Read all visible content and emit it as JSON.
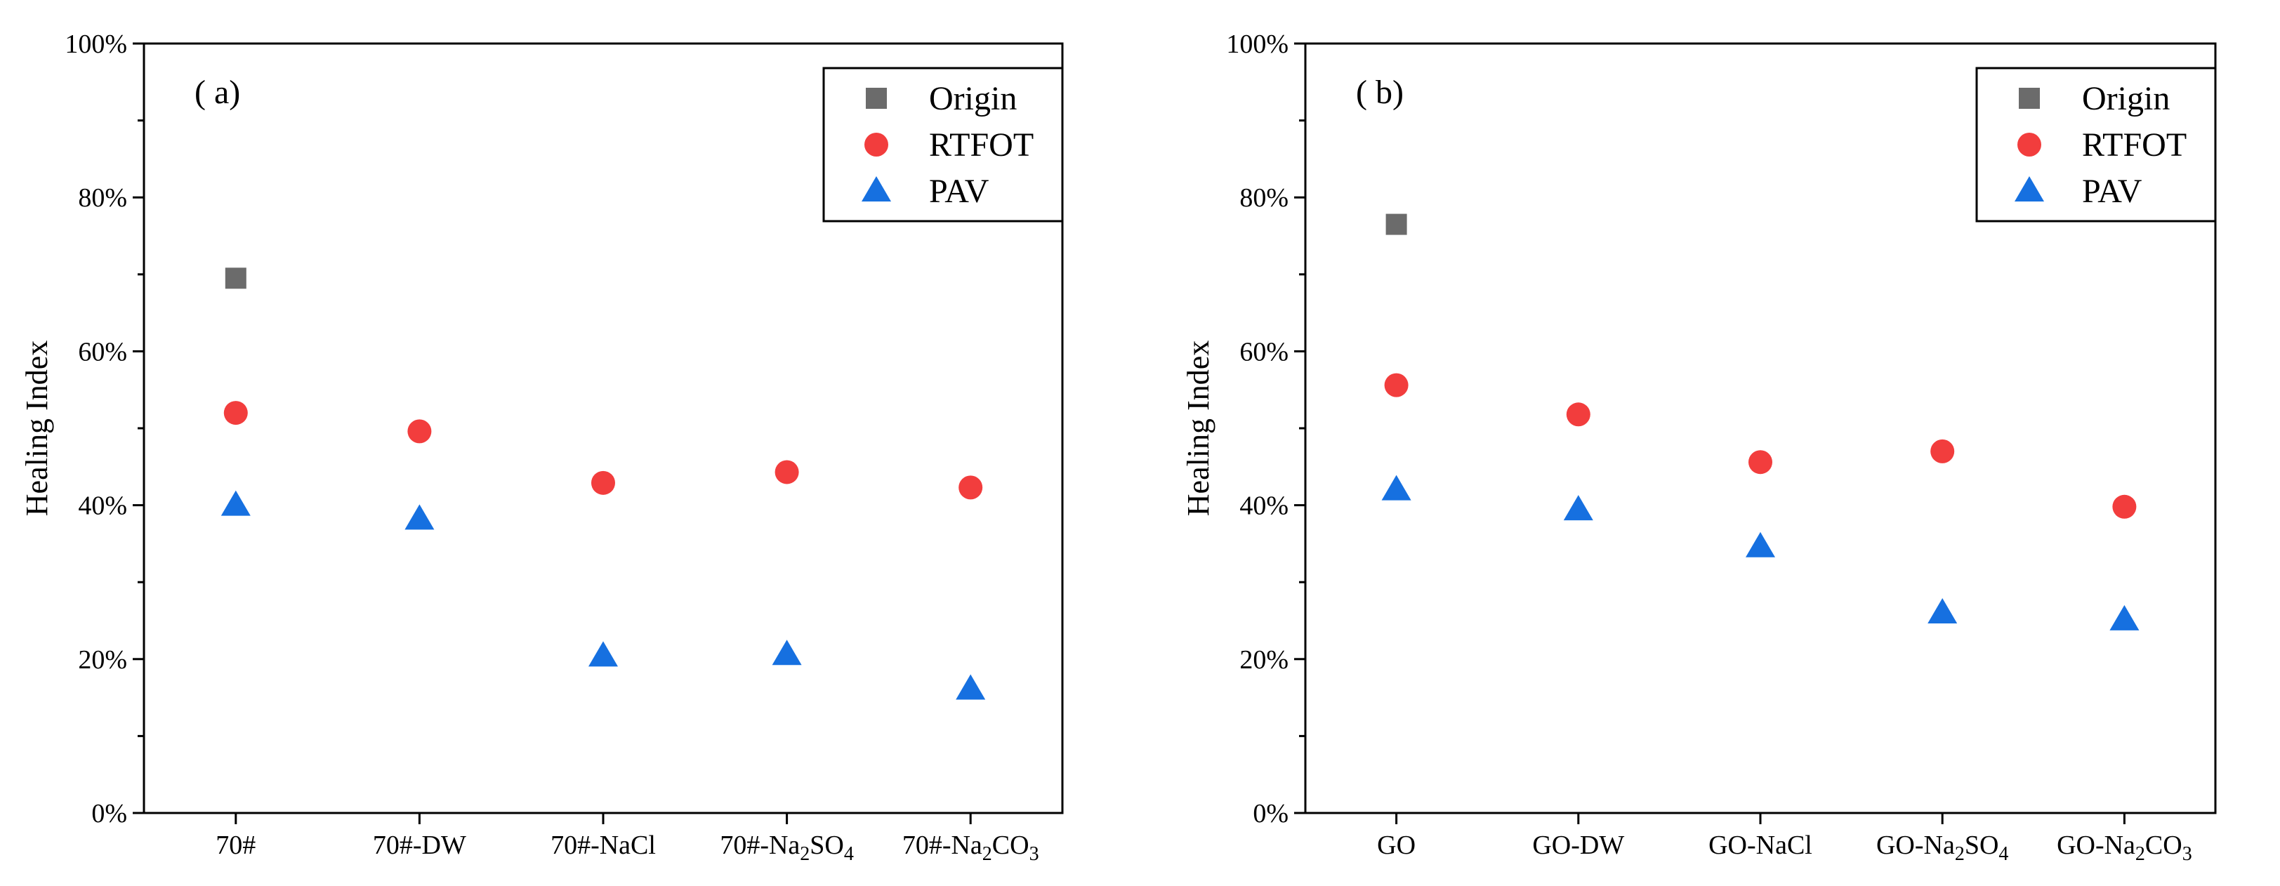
{
  "colors": {
    "origin": "#6b6b6b",
    "rtfot": "#f23d3d",
    "pav": "#1670e0",
    "axis": "#000000",
    "background": "#ffffff"
  },
  "legend": {
    "placement": "top-right",
    "entries": [
      {
        "name": "Origin",
        "marker": "square",
        "color_key": "origin"
      },
      {
        "name": "RTFOT",
        "marker": "circle",
        "color_key": "rtfot"
      },
      {
        "name": "PAV",
        "marker": "triangle",
        "color_key": "pav"
      }
    ]
  },
  "chart_data": [
    {
      "type": "scatter",
      "panel_label": "( a)",
      "ylabel": "Healing Index",
      "xlabel": "",
      "ylim": [
        0,
        100
      ],
      "yticks": [
        "0%",
        "20%",
        "40%",
        "60%",
        "80%",
        "100%"
      ],
      "grid": false,
      "categories": [
        {
          "base": "70#",
          "sub": ""
        },
        {
          "base": "70#-DW",
          "sub": ""
        },
        {
          "base": "70#-NaCl",
          "sub": ""
        },
        {
          "base": "70#-Na",
          "sub": "2",
          "mid": "SO",
          "sub2": "4"
        },
        {
          "base": "70#-Na",
          "sub": "2",
          "mid": "CO",
          "sub2": "3"
        }
      ],
      "series": [
        {
          "name": "Origin",
          "values": [
            69.5,
            null,
            null,
            null,
            null
          ]
        },
        {
          "name": "RTFOT",
          "values": [
            52.0,
            49.6,
            42.9,
            44.3,
            42.3
          ]
        },
        {
          "name": "PAV",
          "values": [
            40.0,
            38.2,
            20.4,
            20.6,
            16.1
          ]
        }
      ]
    },
    {
      "type": "scatter",
      "panel_label": "( b)",
      "ylabel": "Healing Index",
      "xlabel": "",
      "ylim": [
        0,
        100
      ],
      "yticks": [
        "0%",
        "20%",
        "40%",
        "60%",
        "80%",
        "100%"
      ],
      "grid": false,
      "categories": [
        {
          "base": "GO",
          "sub": ""
        },
        {
          "base": "GO-DW",
          "sub": ""
        },
        {
          "base": "GO-NaCl",
          "sub": ""
        },
        {
          "base": "GO-Na",
          "sub": "2",
          "mid": "SO",
          "sub2": "4"
        },
        {
          "base": "GO-Na",
          "sub": "2",
          "mid": "CO",
          "sub2": "3"
        }
      ],
      "series": [
        {
          "name": "Origin",
          "values": [
            76.5,
            null,
            null,
            null,
            null
          ]
        },
        {
          "name": "RTFOT",
          "values": [
            55.6,
            51.8,
            45.6,
            47.0,
            39.8
          ]
        },
        {
          "name": "PAV",
          "values": [
            42.0,
            39.4,
            34.6,
            26.0,
            25.1
          ]
        }
      ]
    }
  ]
}
